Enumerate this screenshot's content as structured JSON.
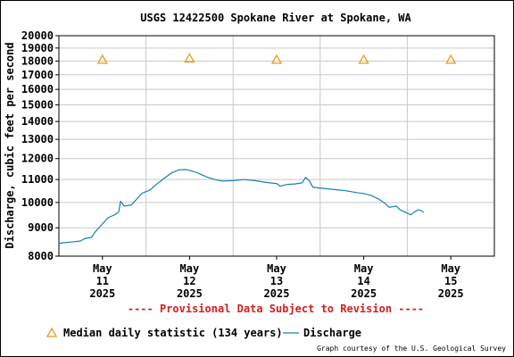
{
  "chart_data": {
    "type": "line",
    "title": "USGS 12422500 Spokane River at Spokane, WA",
    "ylabel": "Discharge, cubic feet per second",
    "y_scale": "log",
    "ylim": [
      8000,
      20000
    ],
    "y_ticks": [
      8000,
      9000,
      10000,
      11000,
      12000,
      13000,
      14000,
      15000,
      16000,
      17000,
      18000,
      19000,
      20000
    ],
    "xlim": [
      "2025-05-10T12:00",
      "2025-05-15T12:00"
    ],
    "x_ticks": [
      {
        "month": "May",
        "day": "11",
        "year": "2025"
      },
      {
        "month": "May",
        "day": "12",
        "year": "2025"
      },
      {
        "month": "May",
        "day": "13",
        "year": "2025"
      },
      {
        "month": "May",
        "day": "14",
        "year": "2025"
      },
      {
        "month": "May",
        "day": "15",
        "year": "2025"
      }
    ],
    "grid": true,
    "series": [
      {
        "name": "Median daily statistic (134 years)",
        "marker": "triangle",
        "color": "#e89a1f",
        "points": [
          {
            "x": "2025-05-11",
            "y": 18100
          },
          {
            "x": "2025-05-12",
            "y": 18200
          },
          {
            "x": "2025-05-13",
            "y": 18100
          },
          {
            "x": "2025-05-14",
            "y": 18100
          },
          {
            "x": "2025-05-15",
            "y": 18100
          }
        ]
      },
      {
        "name": "Discharge",
        "color": "#1a7fb5",
        "points": [
          {
            "x": "2025-05-10T12:00",
            "y": 8430
          },
          {
            "x": "2025-05-10T13:30",
            "y": 8460
          },
          {
            "x": "2025-05-10T15:00",
            "y": 8480
          },
          {
            "x": "2025-05-10T18:00",
            "y": 8520
          },
          {
            "x": "2025-05-10T19:00",
            "y": 8600
          },
          {
            "x": "2025-05-10T21:00",
            "y": 8650
          },
          {
            "x": "2025-05-10T22:00",
            "y": 8850
          },
          {
            "x": "2025-05-11T00:00",
            "y": 9150
          },
          {
            "x": "2025-05-11T01:30",
            "y": 9380
          },
          {
            "x": "2025-05-11T03:30",
            "y": 9510
          },
          {
            "x": "2025-05-11T04:30",
            "y": 9620
          },
          {
            "x": "2025-05-11T05:00",
            "y": 10050
          },
          {
            "x": "2025-05-11T06:00",
            "y": 9850
          },
          {
            "x": "2025-05-11T08:00",
            "y": 9900
          },
          {
            "x": "2025-05-11T09:30",
            "y": 10150
          },
          {
            "x": "2025-05-11T11:00",
            "y": 10400
          },
          {
            "x": "2025-05-11T13:00",
            "y": 10520
          },
          {
            "x": "2025-05-11T15:00",
            "y": 10800
          },
          {
            "x": "2025-05-11T17:00",
            "y": 11050
          },
          {
            "x": "2025-05-11T19:00",
            "y": 11300
          },
          {
            "x": "2025-05-11T21:00",
            "y": 11450
          },
          {
            "x": "2025-05-11T23:00",
            "y": 11470
          },
          {
            "x": "2025-05-12T01:00",
            "y": 11380
          },
          {
            "x": "2025-05-12T03:00",
            "y": 11250
          },
          {
            "x": "2025-05-12T05:00",
            "y": 11100
          },
          {
            "x": "2025-05-12T07:00",
            "y": 11000
          },
          {
            "x": "2025-05-12T09:00",
            "y": 10930
          },
          {
            "x": "2025-05-12T12:00",
            "y": 10950
          },
          {
            "x": "2025-05-12T15:00",
            "y": 11000
          },
          {
            "x": "2025-05-12T18:00",
            "y": 10950
          },
          {
            "x": "2025-05-12T20:00",
            "y": 10900
          },
          {
            "x": "2025-05-12T22:00",
            "y": 10850
          },
          {
            "x": "2025-05-13T00:00",
            "y": 10820
          },
          {
            "x": "2025-05-13T01:00",
            "y": 10700
          },
          {
            "x": "2025-05-13T03:00",
            "y": 10780
          },
          {
            "x": "2025-05-13T05:00",
            "y": 10800
          },
          {
            "x": "2025-05-13T07:00",
            "y": 10850
          },
          {
            "x": "2025-05-13T08:00",
            "y": 11100
          },
          {
            "x": "2025-05-13T09:00",
            "y": 10950
          },
          {
            "x": "2025-05-13T10:00",
            "y": 10650
          },
          {
            "x": "2025-05-13T13:00",
            "y": 10600
          },
          {
            "x": "2025-05-13T16:00",
            "y": 10550
          },
          {
            "x": "2025-05-13T19:00",
            "y": 10500
          },
          {
            "x": "2025-05-13T22:00",
            "y": 10420
          },
          {
            "x": "2025-05-14T00:00",
            "y": 10380
          },
          {
            "x": "2025-05-14T02:00",
            "y": 10300
          },
          {
            "x": "2025-05-14T04:00",
            "y": 10150
          },
          {
            "x": "2025-05-14T06:00",
            "y": 9950
          },
          {
            "x": "2025-05-14T07:00",
            "y": 9800
          },
          {
            "x": "2025-05-14T09:00",
            "y": 9850
          },
          {
            "x": "2025-05-14T10:00",
            "y": 9700
          },
          {
            "x": "2025-05-14T11:30",
            "y": 9600
          },
          {
            "x": "2025-05-14T13:00",
            "y": 9500
          },
          {
            "x": "2025-05-14T14:00",
            "y": 9620
          },
          {
            "x": "2025-05-14T15:00",
            "y": 9700
          },
          {
            "x": "2025-05-14T16:00",
            "y": 9660
          },
          {
            "x": "2025-05-14T16:30",
            "y": 9600
          }
        ]
      }
    ],
    "legend": [
      {
        "label": "Median daily statistic (134 years)",
        "marker": "triangle"
      },
      {
        "label": "Discharge",
        "marker": "line"
      }
    ],
    "annotation": "---- Provisional Data Subject to Revision ----",
    "credit": "Graph courtesy of the U.S. Geological Survey"
  },
  "colors": {
    "grid": "#c8c8c8",
    "axis": "#000000",
    "median": "#e89a1f",
    "discharge": "#1a7fb5",
    "provisional": "#d21e1e"
  }
}
